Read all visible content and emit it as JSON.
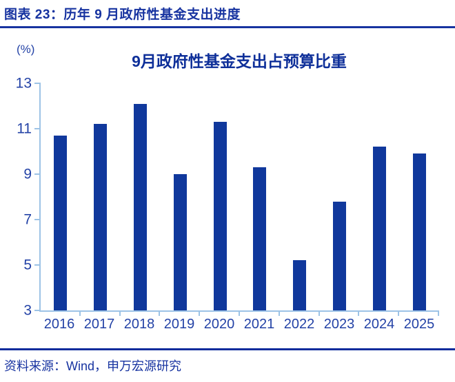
{
  "header": {
    "title": "图表 23：历年 9 月政府性基金支出进度"
  },
  "footer": {
    "source": "资料来源：Wind，申万宏源研究"
  },
  "colors": {
    "bar": "#10389C",
    "axis": "#9DC3E6",
    "header_text": "#1733A0",
    "tick_text": "#2342A6",
    "title_text": "#0E2F99",
    "divider": "#0B2B9B"
  },
  "chart_data": {
    "type": "bar",
    "title": "9月政府性基金支出占预算比重",
    "unit_label": "(%)",
    "xlabel": "",
    "ylabel": "%",
    "categories": [
      "2016",
      "2017",
      "2018",
      "2019",
      "2020",
      "2021",
      "2022",
      "2023",
      "2024",
      "2025"
    ],
    "values": [
      10.7,
      11.2,
      12.1,
      9.0,
      11.3,
      9.3,
      5.2,
      7.8,
      10.2,
      9.9
    ],
    "ylim": [
      3,
      13
    ],
    "yticks": [
      3,
      5,
      7,
      9,
      11,
      13
    ],
    "grid": false,
    "legend": false,
    "legend_position": "none"
  }
}
